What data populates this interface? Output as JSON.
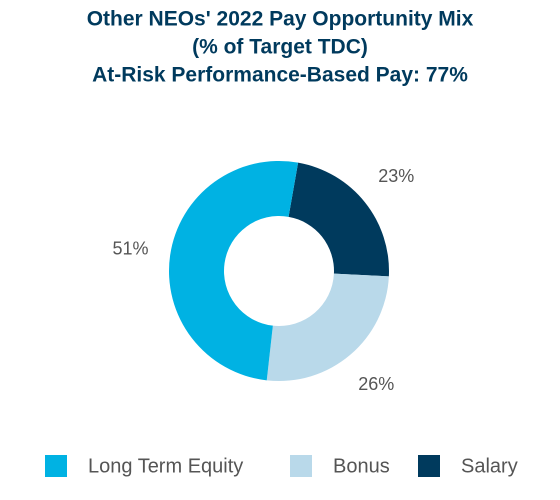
{
  "chart_data": {
    "type": "donut",
    "title": [
      "Other NEOs' 2022 Pay Opportunity Mix",
      "(% of Target TDC)",
      "At-Risk Performance-Based Pay: 77%"
    ],
    "categories": [
      "Long Term Equity",
      "Bonus",
      "Salary"
    ],
    "values": [
      51,
      26,
      23
    ],
    "value_labels": [
      "51%",
      "26%",
      "23%"
    ],
    "colors": [
      "#00b2e3",
      "#b9d9ea",
      "#003a5d"
    ],
    "legend": "bottom"
  }
}
